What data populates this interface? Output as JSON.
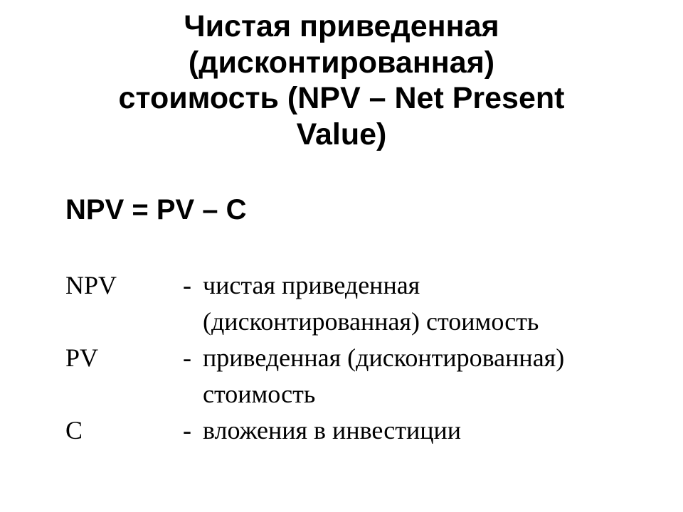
{
  "title_l1": "Чистая приведенная",
  "title_l2": "(дисконтированная)",
  "title_l3": "стоимость (NPV – Net Present",
  "title_l4": "Value)",
  "formula": "NPV = PV – C",
  "defs": {
    "npv": {
      "term": "NPV",
      "dash": "-",
      "line1": "чистая приведенная",
      "line2": "(дисконтированная) стоимость"
    },
    "pv": {
      "term": "PV",
      "dash": "-",
      "line1": "приведенная (дисконтированная)",
      "line2": "стоимость"
    },
    "c": {
      "term": "C",
      "dash": "-",
      "line1": "вложения в инвестиции"
    }
  },
  "colors": {
    "background": "#ffffff",
    "text": "#000000"
  },
  "fonts": {
    "heading_family": "Arial",
    "body_family": "Times New Roman",
    "title_size_pt": 32,
    "formula_size_pt": 30,
    "defs_size_pt": 27
  }
}
